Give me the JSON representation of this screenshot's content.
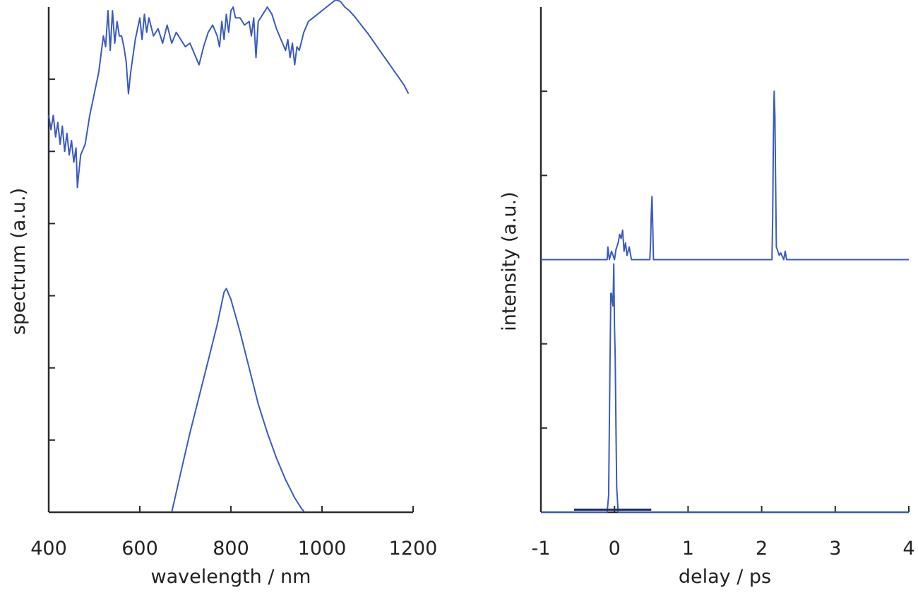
{
  "chart_data": [
    {
      "type": "line",
      "xlabel": "wavelength / nm",
      "ylabel": "spectrum (a.u.)",
      "xlim": [
        400,
        1200
      ],
      "ylim": [
        0,
        7
      ],
      "xticks": [
        "400",
        "600",
        "800",
        "1000",
        "1200"
      ],
      "xtick_values": [
        400,
        600,
        800,
        1000,
        1200
      ],
      "ytick_values": [
        1,
        2,
        3,
        4,
        5,
        6
      ],
      "y_tick_labels_shown": false,
      "series": [
        {
          "points": [
            [
              400,
              5.5
            ],
            [
              405,
              5.3
            ],
            [
              410,
              5.5
            ],
            [
              415,
              5.2
            ],
            [
              420,
              5.4
            ],
            [
              425,
              5.1
            ],
            [
              430,
              5.35
            ],
            [
              435,
              5.0
            ],
            [
              440,
              5.25
            ],
            [
              445,
              4.95
            ],
            [
              450,
              5.15
            ],
            [
              455,
              4.85
            ],
            [
              460,
              5.05
            ],
            [
              463,
              4.5
            ],
            [
              466,
              4.7
            ],
            [
              470,
              4.95
            ],
            [
              480,
              5.1
            ],
            [
              490,
              5.5
            ],
            [
              500,
              5.8
            ],
            [
              510,
              6.1
            ],
            [
              520,
              6.6
            ],
            [
              525,
              6.45
            ],
            [
              530,
              6.95
            ],
            [
              535,
              6.4
            ],
            [
              540,
              6.95
            ],
            [
              545,
              6.5
            ],
            [
              550,
              6.8
            ],
            [
              555,
              6.6
            ],
            [
              560,
              6.6
            ],
            [
              565,
              6.45
            ],
            [
              570,
              6.25
            ],
            [
              575,
              5.8
            ],
            [
              580,
              6.1
            ],
            [
              590,
              6.55
            ],
            [
              600,
              6.85
            ],
            [
              605,
              6.55
            ],
            [
              610,
              6.9
            ],
            [
              615,
              6.65
            ],
            [
              620,
              6.85
            ],
            [
              630,
              6.6
            ],
            [
              640,
              6.7
            ],
            [
              650,
              6.5
            ],
            [
              660,
              6.75
            ],
            [
              670,
              6.5
            ],
            [
              680,
              6.65
            ],
            [
              690,
              6.55
            ],
            [
              700,
              6.45
            ],
            [
              710,
              6.5
            ],
            [
              720,
              6.35
            ],
            [
              730,
              6.2
            ],
            [
              740,
              6.45
            ],
            [
              750,
              6.65
            ],
            [
              760,
              6.75
            ],
            [
              770,
              6.6
            ],
            [
              775,
              6.45
            ],
            [
              780,
              6.8
            ],
            [
              785,
              6.55
            ],
            [
              790,
              6.9
            ],
            [
              795,
              6.65
            ],
            [
              800,
              6.95
            ],
            [
              805,
              7.0
            ],
            [
              810,
              6.85
            ],
            [
              820,
              6.85
            ],
            [
              830,
              6.75
            ],
            [
              840,
              6.8
            ],
            [
              845,
              6.6
            ],
            [
              850,
              6.85
            ],
            [
              855,
              6.3
            ],
            [
              860,
              6.8
            ],
            [
              870,
              6.9
            ],
            [
              880,
              7.0
            ],
            [
              890,
              6.9
            ],
            [
              900,
              6.7
            ],
            [
              910,
              6.55
            ],
            [
              920,
              6.4
            ],
            [
              925,
              6.55
            ],
            [
              930,
              6.3
            ],
            [
              935,
              6.5
            ],
            [
              940,
              6.2
            ],
            [
              945,
              6.45
            ],
            [
              950,
              6.4
            ],
            [
              960,
              6.65
            ],
            [
              970,
              6.8
            ],
            [
              980,
              6.85
            ],
            [
              990,
              6.9
            ],
            [
              1000,
              6.95
            ],
            [
              1010,
              7.0
            ],
            [
              1020,
              7.05
            ],
            [
              1030,
              7.1
            ],
            [
              1040,
              7.08
            ],
            [
              1050,
              7.0
            ],
            [
              1060,
              6.95
            ],
            [
              1070,
              6.88
            ],
            [
              1080,
              6.8
            ],
            [
              1090,
              6.72
            ],
            [
              1100,
              6.64
            ],
            [
              1110,
              6.55
            ],
            [
              1120,
              6.46
            ],
            [
              1130,
              6.37
            ],
            [
              1140,
              6.28
            ],
            [
              1150,
              6.19
            ],
            [
              1160,
              6.1
            ],
            [
              1170,
              6.01
            ],
            [
              1180,
              5.92
            ],
            [
              1190,
              5.8
            ]
          ]
        },
        {
          "points": [
            [
              670,
              0.0
            ],
            [
              690,
              0.55
            ],
            [
              710,
              1.1
            ],
            [
              730,
              1.6
            ],
            [
              750,
              2.1
            ],
            [
              770,
              2.6
            ],
            [
              785,
              3.05
            ],
            [
              790,
              3.1
            ],
            [
              800,
              2.95
            ],
            [
              820,
              2.5
            ],
            [
              840,
              2.0
            ],
            [
              860,
              1.5
            ],
            [
              880,
              1.1
            ],
            [
              900,
              0.75
            ],
            [
              920,
              0.45
            ],
            [
              940,
              0.2
            ],
            [
              955,
              0.05
            ],
            [
              962,
              0.0
            ]
          ]
        }
      ]
    },
    {
      "type": "line",
      "xlabel": "delay / ps",
      "ylabel": "intensity (a.u.)",
      "xlim": [
        -1,
        4
      ],
      "ylim": [
        0,
        6
      ],
      "xticks": [
        "-1",
        "0",
        "1",
        "2",
        "3",
        "4"
      ],
      "xtick_values": [
        -1,
        0,
        1,
        2,
        3,
        4
      ],
      "ytick_values": [
        1,
        2,
        3,
        4,
        5
      ],
      "y_tick_labels_shown": false,
      "series": [
        {
          "points": [
            [
              -1.0,
              3.0
            ],
            [
              -0.1,
              3.0
            ],
            [
              -0.09,
              3.15
            ],
            [
              -0.07,
              3.0
            ],
            [
              -0.04,
              3.1
            ],
            [
              0.0,
              3.0
            ],
            [
              0.02,
              3.12
            ],
            [
              0.05,
              3.2
            ],
            [
              0.07,
              3.3
            ],
            [
              0.09,
              3.25
            ],
            [
              0.11,
              3.35
            ],
            [
              0.13,
              3.1
            ],
            [
              0.15,
              3.2
            ],
            [
              0.17,
              3.05
            ],
            [
              0.2,
              3.15
            ],
            [
              0.23,
              3.0
            ],
            [
              0.48,
              3.0
            ],
            [
              0.49,
              3.2
            ],
            [
              0.5,
              3.55
            ],
            [
              0.51,
              3.75
            ],
            [
              0.52,
              3.4
            ],
            [
              0.53,
              3.0
            ],
            [
              0.56,
              3.0
            ],
            [
              2.14,
              3.0
            ],
            [
              2.15,
              3.5
            ],
            [
              2.16,
              4.5
            ],
            [
              2.17,
              5.0
            ],
            [
              2.18,
              4.7
            ],
            [
              2.19,
              3.9
            ],
            [
              2.2,
              3.15
            ],
            [
              2.22,
              3.1
            ],
            [
              2.24,
              3.05
            ],
            [
              2.26,
              3.08
            ],
            [
              2.3,
              3.0
            ],
            [
              2.32,
              3.1
            ],
            [
              2.34,
              3.0
            ],
            [
              4.0,
              3.0
            ]
          ]
        },
        {
          "points": [
            [
              -1.0,
              0.0
            ],
            [
              -0.1,
              0.0
            ],
            [
              -0.08,
              0.2
            ],
            [
              -0.06,
              1.8
            ],
            [
              -0.05,
              2.6
            ],
            [
              -0.04,
              2.6
            ],
            [
              -0.03,
              2.5
            ],
            [
              -0.02,
              2.45
            ],
            [
              -0.01,
              2.95
            ],
            [
              0.0,
              2.2
            ],
            [
              0.01,
              1.85
            ],
            [
              0.02,
              1.0
            ],
            [
              0.03,
              0.3
            ],
            [
              0.05,
              0.0
            ],
            [
              4.0,
              0.0
            ]
          ]
        },
        {
          "points": [
            [
              -0.55,
              0.03
            ],
            [
              0.5,
              0.03
            ]
          ]
        }
      ]
    }
  ]
}
